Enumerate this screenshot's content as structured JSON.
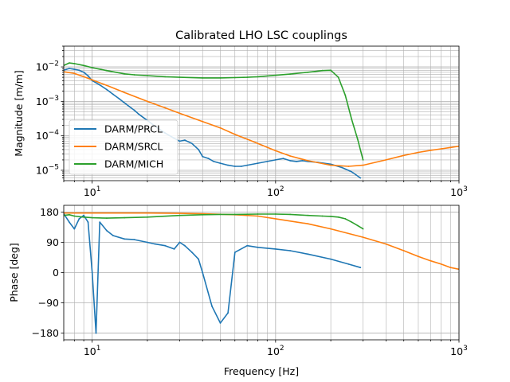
{
  "chart_data": [
    {
      "type": "line",
      "title": "Calibrated LHO LSC couplings",
      "xlabel": "",
      "ylabel": "Magnitude [m/m]",
      "xscale": "log",
      "yscale": "log",
      "xlim": [
        7,
        1000
      ],
      "ylim": [
        5e-06,
        0.04
      ],
      "grid": true,
      "legend_position": "lower-left",
      "x_ticks": [
        {
          "value": 10,
          "base": "10",
          "exp": "1"
        },
        {
          "value": 100,
          "base": "10",
          "exp": "2"
        },
        {
          "value": 1000,
          "base": "10",
          "exp": "3"
        }
      ],
      "y_ticks": [
        {
          "value": 1e-05,
          "base": "10",
          "exp": "−5"
        },
        {
          "value": 0.0001,
          "base": "10",
          "exp": "−4"
        },
        {
          "value": 0.001,
          "base": "10",
          "exp": "−3"
        },
        {
          "value": 0.01,
          "base": "10",
          "exp": "−2"
        }
      ],
      "series": [
        {
          "name": "DARM/PRCL",
          "color": "#1f77b4",
          "x": [
            7,
            7.5,
            8,
            8.5,
            9,
            9.5,
            10,
            11,
            12,
            13,
            14,
            15,
            16,
            17,
            18,
            20,
            22,
            25,
            28,
            30,
            32,
            35,
            38,
            40,
            43,
            46,
            50,
            55,
            60,
            65,
            70,
            80,
            90,
            100,
            110,
            120,
            130,
            140,
            150,
            170,
            200,
            230,
            260,
            290
          ],
          "y": [
            0.008,
            0.009,
            0.0085,
            0.008,
            0.007,
            0.0055,
            0.004,
            0.003,
            0.0022,
            0.0016,
            0.0012,
            0.0009,
            0.0007,
            0.00055,
            0.00042,
            0.00028,
            0.00019,
            0.00012,
            8.5e-05,
            7e-05,
            7.5e-05,
            6e-05,
            4e-05,
            2.5e-05,
            2.2e-05,
            1.8e-05,
            1.6e-05,
            1.4e-05,
            1.3e-05,
            1.3e-05,
            1.4e-05,
            1.6e-05,
            1.8e-05,
            2e-05,
            2.2e-05,
            1.9e-05,
            1.8e-05,
            1.9e-05,
            1.8e-05,
            1.7e-05,
            1.5e-05,
            1.2e-05,
            9e-06,
            6e-06
          ]
        },
        {
          "name": "DARM/SRCL",
          "color": "#ff7f0e",
          "x": [
            7,
            8,
            9,
            10,
            12,
            15,
            20,
            25,
            30,
            40,
            50,
            60,
            70,
            80,
            100,
            120,
            150,
            200,
            250,
            300,
            400,
            500,
            600,
            700,
            800,
            900,
            1000
          ],
          "y": [
            0.0072,
            0.0065,
            0.0052,
            0.0042,
            0.0029,
            0.0018,
            0.001,
            0.00065,
            0.00045,
            0.00026,
            0.00017,
            0.00011,
            8e-05,
            6e-05,
            3.7e-05,
            2.6e-05,
            1.9e-05,
            1.4e-05,
            1.3e-05,
            1.4e-05,
            2e-05,
            2.7e-05,
            3.3e-05,
            3.8e-05,
            4.2e-05,
            4.6e-05,
            5e-05
          ]
        },
        {
          "name": "DARM/MICH",
          "color": "#2ca02c",
          "x": [
            7,
            7.5,
            8,
            9,
            10,
            12,
            15,
            17,
            20,
            25,
            30,
            40,
            50,
            60,
            70,
            80,
            100,
            120,
            150,
            180,
            200,
            220,
            240,
            260,
            280,
            300
          ],
          "y": [
            0.011,
            0.013,
            0.0125,
            0.011,
            0.0095,
            0.0078,
            0.0063,
            0.0059,
            0.0056,
            0.0052,
            0.005,
            0.0048,
            0.0048,
            0.0049,
            0.005,
            0.0052,
            0.0057,
            0.0062,
            0.007,
            0.0078,
            0.008,
            0.005,
            0.0015,
            0.0003,
            8e-05,
            2e-05
          ]
        }
      ]
    },
    {
      "type": "line",
      "title": "",
      "xlabel": "Frequency [Hz]",
      "ylabel": "Phase [deg]",
      "xscale": "log",
      "yscale": "linear",
      "xlim": [
        7,
        1000
      ],
      "ylim": [
        -200,
        200
      ],
      "grid": true,
      "x_ticks": [
        {
          "value": 10,
          "base": "10",
          "exp": "1"
        },
        {
          "value": 100,
          "base": "10",
          "exp": "2"
        },
        {
          "value": 1000,
          "base": "10",
          "exp": "3"
        }
      ],
      "y_ticks": [
        {
          "value": 180,
          "label": "180"
        },
        {
          "value": 90,
          "label": "90"
        },
        {
          "value": 0,
          "label": "0"
        },
        {
          "value": -90,
          "label": "−90"
        },
        {
          "value": -180,
          "label": "−180"
        }
      ],
      "series": [
        {
          "name": "DARM/PRCL",
          "color": "#1f77b4",
          "x": [
            7,
            7.5,
            8,
            8.5,
            9,
            9.5,
            10,
            10.5,
            11,
            12,
            13,
            15,
            17,
            20,
            22,
            25,
            28,
            30,
            32,
            35,
            38,
            40,
            45,
            50,
            55,
            60,
            70,
            80,
            100,
            120,
            150,
            200,
            250,
            290
          ],
          "y": [
            175,
            150,
            130,
            160,
            170,
            150,
            0,
            -180,
            150,
            125,
            110,
            100,
            98,
            90,
            85,
            80,
            70,
            90,
            80,
            60,
            40,
            0,
            -100,
            -150,
            -120,
            60,
            80,
            75,
            70,
            65,
            55,
            40,
            25,
            15
          ]
        },
        {
          "name": "DARM/SRCL",
          "color": "#ff7f0e",
          "x": [
            7,
            10,
            20,
            30,
            40,
            60,
            80,
            100,
            150,
            200,
            300,
            400,
            500,
            600,
            700,
            800,
            900,
            1000
          ],
          "y": [
            177,
            177,
            177,
            176,
            175,
            172,
            168,
            160,
            145,
            130,
            105,
            85,
            65,
            48,
            35,
            25,
            15,
            10
          ]
        },
        {
          "name": "DARM/MICH",
          "color": "#2ca02c",
          "x": [
            7,
            7.5,
            8,
            9,
            10,
            12,
            15,
            20,
            30,
            40,
            50,
            60,
            80,
            100,
            120,
            150,
            180,
            200,
            220,
            240,
            260,
            280,
            300
          ],
          "y": [
            170,
            172,
            168,
            165,
            163,
            162,
            163,
            165,
            170,
            172,
            173,
            173,
            174,
            174,
            173,
            170,
            168,
            167,
            165,
            160,
            150,
            140,
            130
          ]
        }
      ]
    }
  ]
}
